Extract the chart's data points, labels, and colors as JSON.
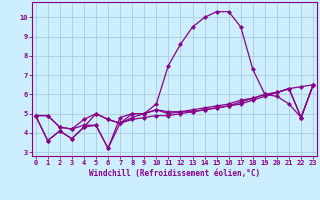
{
  "xlabel": "Windchill (Refroidissement éolien,°C)",
  "ylabel": "",
  "background_color": "#cceeff",
  "grid_color": "#aaccdd",
  "line_color": "#880088",
  "x_data": [
    0,
    1,
    2,
    3,
    4,
    5,
    6,
    7,
    8,
    9,
    10,
    11,
    12,
    13,
    14,
    15,
    16,
    17,
    18,
    19,
    20,
    21,
    22,
    23
  ],
  "series": [
    [
      4.9,
      3.6,
      4.1,
      3.7,
      4.3,
      5.0,
      4.7,
      4.5,
      5.0,
      5.0,
      5.5,
      7.5,
      8.6,
      9.5,
      10.0,
      10.3,
      10.3,
      9.5,
      7.3,
      6.0,
      5.9,
      5.5,
      4.8,
      6.5
    ],
    [
      4.9,
      3.6,
      4.1,
      3.7,
      4.3,
      4.4,
      3.2,
      4.8,
      5.0,
      5.0,
      5.2,
      5.1,
      5.1,
      5.2,
      5.3,
      5.4,
      5.5,
      5.7,
      5.8,
      6.0,
      6.1,
      6.3,
      6.4,
      6.5
    ],
    [
      4.9,
      4.9,
      4.3,
      4.2,
      4.4,
      4.4,
      3.2,
      4.5,
      4.7,
      4.8,
      4.9,
      4.9,
      5.0,
      5.1,
      5.2,
      5.3,
      5.4,
      5.5,
      5.7,
      5.9,
      6.1,
      6.3,
      4.8,
      6.5
    ],
    [
      4.9,
      4.9,
      4.3,
      4.2,
      4.7,
      5.0,
      4.7,
      4.5,
      4.8,
      5.0,
      5.2,
      5.0,
      5.1,
      5.1,
      5.2,
      5.3,
      5.4,
      5.6,
      5.8,
      6.0,
      6.1,
      6.3,
      4.8,
      6.5
    ]
  ],
  "ylim": [
    2.8,
    10.8
  ],
  "xlim": [
    -0.3,
    23.3
  ],
  "yticks": [
    3,
    4,
    5,
    6,
    7,
    8,
    9,
    10
  ],
  "xticks": [
    0,
    1,
    2,
    3,
    4,
    5,
    6,
    7,
    8,
    9,
    10,
    11,
    12,
    13,
    14,
    15,
    16,
    17,
    18,
    19,
    20,
    21,
    22,
    23
  ],
  "marker": "D",
  "markersize": 2.2,
  "linewidth": 0.9,
  "xlabel_fontsize": 5.5,
  "tick_fontsize": 5.0,
  "figsize": [
    3.2,
    2.0
  ],
  "dpi": 100
}
